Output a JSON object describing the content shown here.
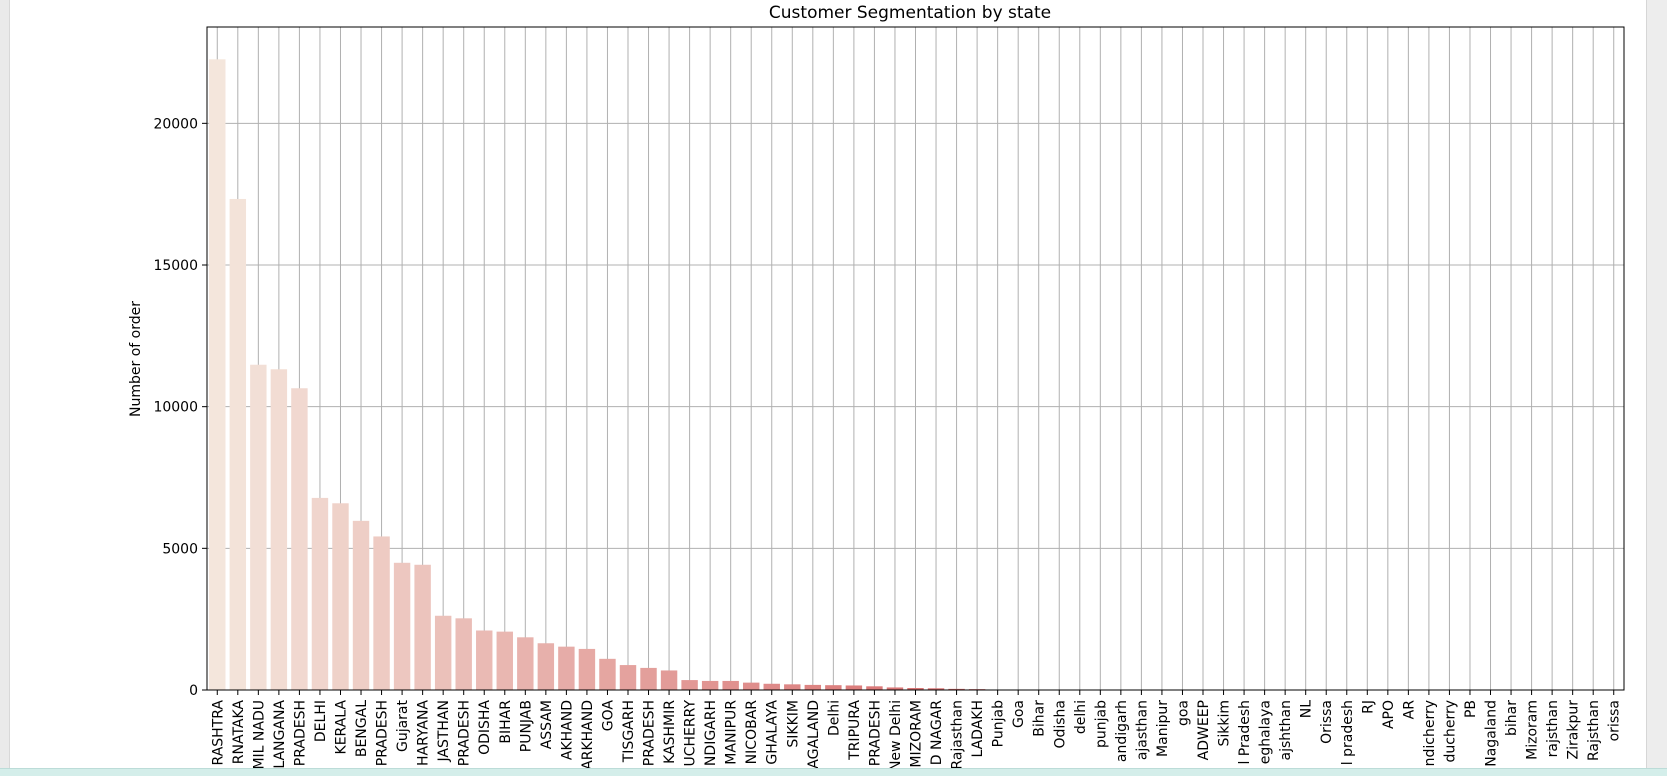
{
  "chart_data": {
    "type": "bar",
    "title": "Customer Segmentation by state",
    "xlabel": "",
    "ylabel": "Number of order",
    "ylim": [
      0,
      23400
    ],
    "yticks": [
      0,
      5000,
      10000,
      15000,
      20000
    ],
    "grid": true,
    "categories": [
      "RASHTRA",
      "RNATAKA",
      "MIL NADU",
      "LANGANA",
      "PRADESH",
      "DELHI",
      "KERALA",
      "BENGAL",
      "PRADESH",
      "Gujarat",
      "HARYANA",
      "JASTHAN",
      "PRADESH",
      "ODISHA",
      "BIHAR",
      "PUNJAB",
      "ASSAM",
      "AKHAND",
      "ARKHAND",
      "GOA",
      "TISGARH",
      "PRADESH",
      "KASHMIR",
      "UCHERRY",
      "NDIGARH",
      "MANIPUR",
      "NICOBAR",
      "GHALAYA",
      "SIKKIM",
      "AGALAND",
      "Delhi",
      "TRIPURA",
      "PRADESH",
      "New Delhi",
      "MIZORAM",
      "D NAGAR",
      "Rajasthan",
      "LADAKH",
      "Punjab",
      "Goa",
      "Bihar",
      "Odisha",
      "delhi",
      "punjab",
      "andigarh",
      "ajasthan",
      "Manipur",
      "goa",
      "ADWEEP",
      "Sikkim",
      "l Pradesh",
      "eghalaya",
      "ajshthan",
      "NL",
      "Orissa",
      "l pradesh",
      "RJ",
      "APO",
      "AR",
      "ndicherry",
      "ducherry",
      "PB",
      "Nagaland",
      "bihar",
      "Mizoram",
      "rajsthan",
      "Zirakpur",
      "Rajsthan",
      "orissa"
    ],
    "values": [
      22260,
      17330,
      11480,
      11320,
      10650,
      6780,
      6590,
      5970,
      5420,
      4490,
      4420,
      2620,
      2530,
      2100,
      2060,
      1860,
      1650,
      1530,
      1450,
      1100,
      880,
      780,
      690,
      350,
      320,
      320,
      260,
      220,
      200,
      180,
      170,
      160,
      130,
      90,
      70,
      60,
      40,
      30,
      12,
      10,
      8,
      6,
      5,
      4,
      4,
      3,
      3,
      2,
      2,
      2,
      2,
      1,
      1,
      1,
      1,
      1,
      1,
      1,
      1,
      1,
      1,
      1,
      1,
      1,
      1,
      1,
      1,
      1,
      1
    ],
    "colors": {
      "bar_start": "#f4e6dc",
      "bar_end": "#cf4a4e",
      "grid": "#b0b0b0",
      "axis": "#000000"
    }
  }
}
